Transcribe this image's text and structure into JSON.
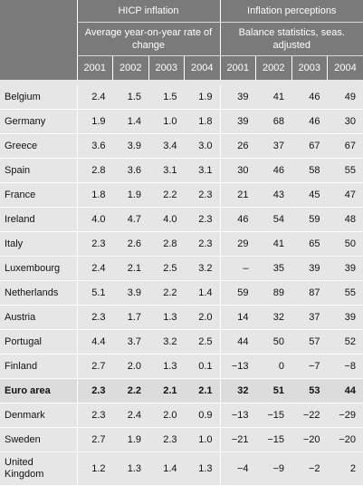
{
  "header": {
    "group_hicp": "HICP inflation",
    "group_perc": "Inflation perceptions",
    "sub_hicp": "Average year-on-year rate of change",
    "sub_perc": "Balance statistics, seas. adjusted",
    "years_hicp": [
      "2001",
      "2002",
      "2003",
      "2004"
    ],
    "years_perc": [
      "2001",
      "2002",
      "2003",
      "2004"
    ]
  },
  "rows": [
    {
      "country": "Belgium",
      "hicp": [
        "2.4",
        "1.5",
        "1.5",
        "1.9"
      ],
      "perc": [
        "39",
        "41",
        "46",
        "49"
      ]
    },
    {
      "country": "Germany",
      "hicp": [
        "1.9",
        "1.4",
        "1.0",
        "1.8"
      ],
      "perc": [
        "39",
        "68",
        "46",
        "30"
      ]
    },
    {
      "country": "Greece",
      "hicp": [
        "3.6",
        "3.9",
        "3.4",
        "3.0"
      ],
      "perc": [
        "26",
        "37",
        "67",
        "67"
      ]
    },
    {
      "country": "Spain",
      "hicp": [
        "2.8",
        "3.6",
        "3.1",
        "3.1"
      ],
      "perc": [
        "30",
        "46",
        "58",
        "55"
      ]
    },
    {
      "country": "France",
      "hicp": [
        "1.8",
        "1.9",
        "2.2",
        "2.3"
      ],
      "perc": [
        "21",
        "43",
        "45",
        "47"
      ]
    },
    {
      "country": "Ireland",
      "hicp": [
        "4.0",
        "4.7",
        "4.0",
        "2.3"
      ],
      "perc": [
        "46",
        "54",
        "59",
        "48"
      ]
    },
    {
      "country": "Italy",
      "hicp": [
        "2.3",
        "2.6",
        "2.8",
        "2.3"
      ],
      "perc": [
        "29",
        "41",
        "65",
        "50"
      ]
    },
    {
      "country": "Luxembourg",
      "hicp": [
        "2.4",
        "2.1",
        "2.5",
        "3.2"
      ],
      "perc": [
        "–",
        "35",
        "39",
        "39"
      ]
    },
    {
      "country": "Netherlands",
      "hicp": [
        "5.1",
        "3.9",
        "2.2",
        "1.4"
      ],
      "perc": [
        "59",
        "89",
        "87",
        "55"
      ]
    },
    {
      "country": "Austria",
      "hicp": [
        "2.3",
        "1.7",
        "1.3",
        "2.0"
      ],
      "perc": [
        "14",
        "32",
        "37",
        "39"
      ]
    },
    {
      "country": "Portugal",
      "hicp": [
        "4.4",
        "3.7",
        "3.2",
        "2.5"
      ],
      "perc": [
        "44",
        "50",
        "57",
        "52"
      ]
    },
    {
      "country": "Finland",
      "hicp": [
        "2.7",
        "2.0",
        "1.3",
        "0.1"
      ],
      "perc": [
        "−13",
        "0",
        "−7",
        "−8"
      ]
    },
    {
      "country": "Euro area",
      "hicp": [
        "2.3",
        "2.2",
        "2.1",
        "2.1"
      ],
      "perc": [
        "32",
        "51",
        "53",
        "44"
      ]
    },
    {
      "country": "Denmark",
      "hicp": [
        "2.3",
        "2.4",
        "2.0",
        "0.9"
      ],
      "perc": [
        "−13",
        "−15",
        "−22",
        "−29"
      ]
    },
    {
      "country": "Sweden",
      "hicp": [
        "2.7",
        "1.9",
        "2.3",
        "1.0"
      ],
      "perc": [
        "−21",
        "−15",
        "−20",
        "−20"
      ]
    },
    {
      "country_line1": "United",
      "country_line2": "Kingdom",
      "hicp": [
        "1.2",
        "1.3",
        "1.4",
        "1.3"
      ],
      "perc": [
        "−4",
        "−9",
        "−2",
        "2"
      ]
    }
  ]
}
